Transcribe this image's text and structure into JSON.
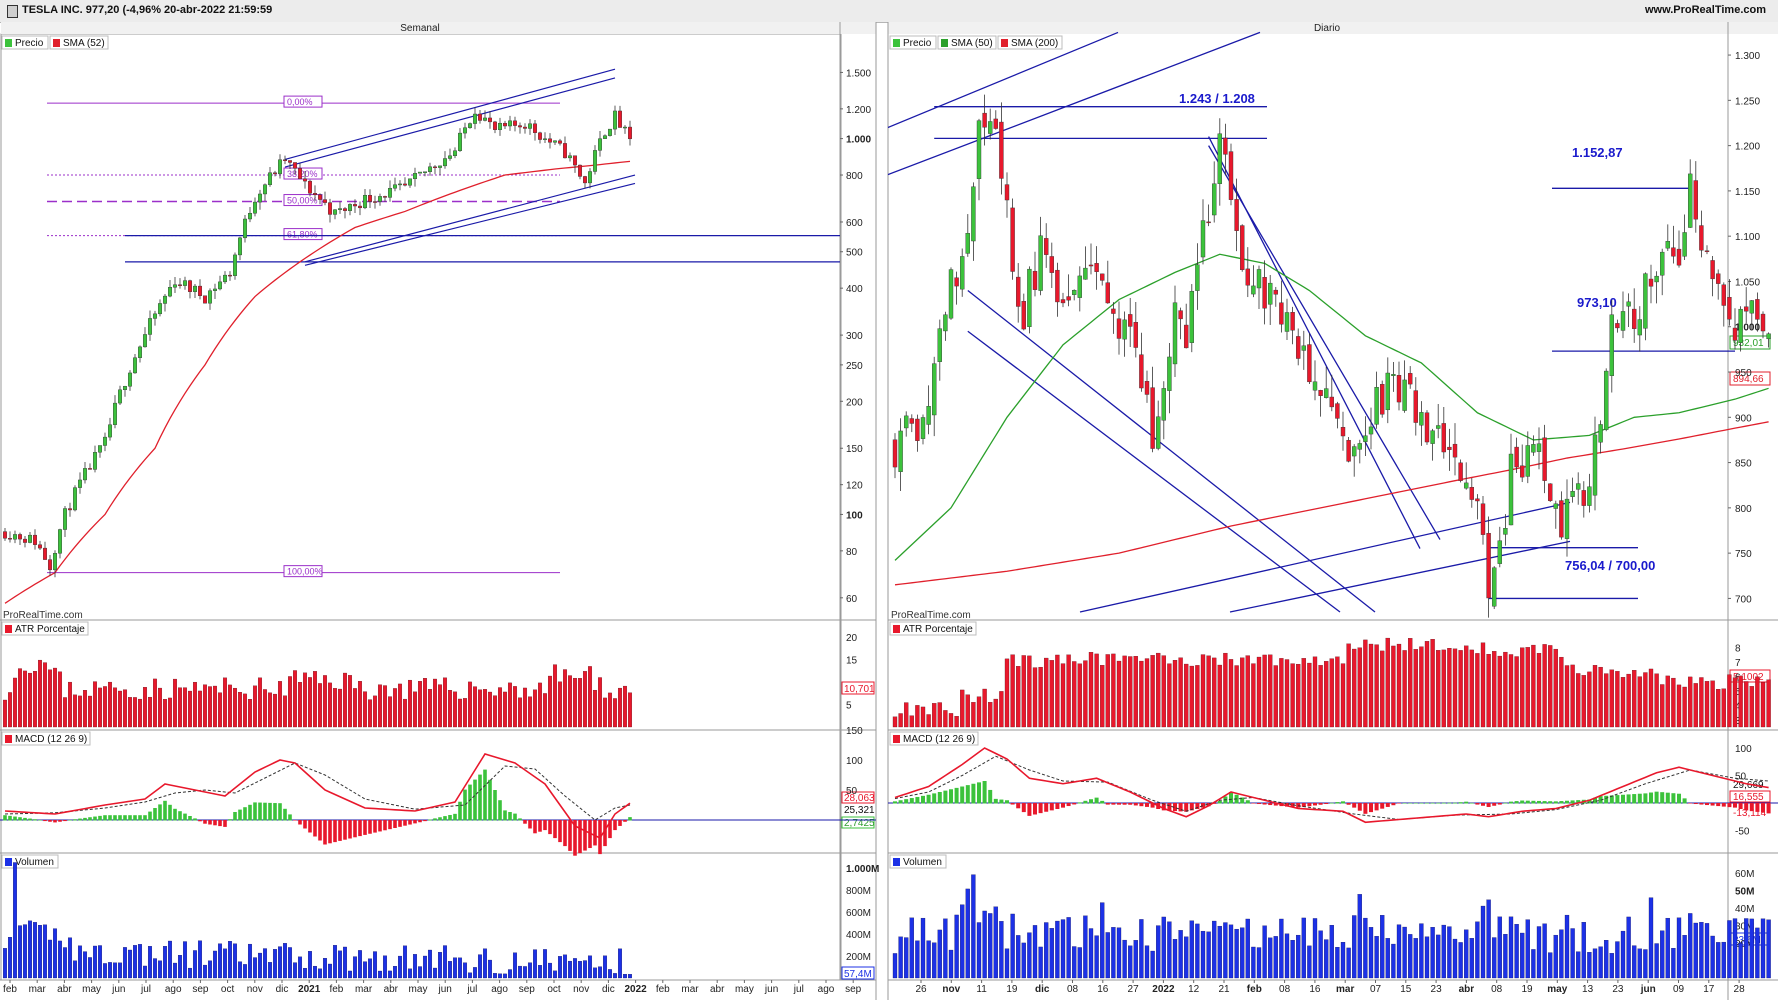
{
  "window": {
    "title": "TESLA INC. 977,20 (-4,96% 20-abr-2022 21:59:59",
    "site": "www.ProRealTime.com"
  },
  "colors": {
    "up": "#3cc23c",
    "down": "#e8182c",
    "sma_red": "#e0202c",
    "sma_green": "#2ba02b",
    "trend": "#1a1aa8",
    "fib": "#9b2fc9",
    "vol": "#1c31e6"
  },
  "left": {
    "panel_title": "Semanal",
    "watermark": "ProRealTime.com",
    "price_legend": [
      "Precio",
      "SMA (52)"
    ],
    "price_axis": [
      "1.500",
      "1.200",
      "1.000",
      "800",
      "600",
      "500",
      "400",
      "300",
      "250",
      "200",
      "150",
      "120",
      "100",
      "80",
      "60"
    ],
    "fib_labels": [
      "0,00%",
      "38,20%",
      "50,00%",
      "61,80%",
      "100,00%"
    ],
    "atr_label": "ATR Porcentaje",
    "atr_axis": [
      "20",
      "15",
      "5"
    ],
    "atr_value": "10,701",
    "macd_label": "MACD (12 26 9)",
    "macd_axis": [
      "150",
      "100",
      "50"
    ],
    "macd_values": [
      "28,063",
      "25,321",
      "2,7425"
    ],
    "vol_label": "Volumen",
    "vol_axis": [
      "1.000M",
      "800M",
      "600M",
      "400M",
      "200M"
    ],
    "vol_value": "57,4M",
    "x_labels": [
      "feb",
      "mar",
      "abr",
      "may",
      "jun",
      "jul",
      "ago",
      "sep",
      "oct",
      "nov",
      "dic",
      "2021",
      "feb",
      "mar",
      "abr",
      "may",
      "jun",
      "jul",
      "ago",
      "sep",
      "oct",
      "nov",
      "dic",
      "2022",
      "feb",
      "mar",
      "abr",
      "may",
      "jun",
      "jul",
      "ago",
      "sep"
    ]
  },
  "right": {
    "panel_title": "Diario",
    "watermark": "ProRealTime.com",
    "price_legend": [
      "Precio",
      "SMA (50)",
      "SMA (200)"
    ],
    "price_axis": [
      "1.300",
      "1.250",
      "1.200",
      "1.150",
      "1.100",
      "1.050",
      "1.000",
      "950",
      "900",
      "850",
      "800",
      "750",
      "700"
    ],
    "badge_sma50": "932,01",
    "badge_sma200": "894,66",
    "annotations": [
      "1.243 / 1.208",
      "1.152,87",
      "973,10",
      "756,04 / 700,00"
    ],
    "atr_label": "ATR Porcentaje",
    "atr_axis": [
      "8",
      "7",
      "6",
      "5",
      "4",
      "3"
    ],
    "atr_value": "5,1002",
    "macd_label": "MACD (12 26 9)",
    "macd_axis": [
      "100",
      "50",
      "-50"
    ],
    "macd_values": [
      "29,669",
      "16,555",
      "-13,114"
    ],
    "vol_label": "Volumen",
    "vol_axis": [
      "60M",
      "50M",
      "40M",
      "30M",
      "20M"
    ],
    "vol_value": "23,6M",
    "x_labels": [
      "26",
      "nov",
      "11",
      "19",
      "dic",
      "08",
      "16",
      "27",
      "2022",
      "12",
      "21",
      "feb",
      "08",
      "16",
      "mar",
      "07",
      "15",
      "23",
      "abr",
      "08",
      "19",
      "may",
      "13",
      "23",
      "jun",
      "09",
      "17",
      "28"
    ]
  },
  "chart_data": [
    {
      "type": "candlestick",
      "title": "Semanal",
      "y_scale": "log",
      "ylim": [
        55,
        1700
      ],
      "series": [
        {
          "name": "Precio",
          "close_path": [
            [
              0,
              90
            ],
            [
              6,
              85
            ],
            [
              9,
              73
            ],
            [
              12,
              100
            ],
            [
              20,
              155
            ],
            [
              28,
              300
            ],
            [
              34,
              420
            ],
            [
              40,
              380
            ],
            [
              45,
              440
            ],
            [
              50,
              700
            ],
            [
              56,
              880
            ],
            [
              60,
              750
            ],
            [
              66,
              630
            ],
            [
              72,
              690
            ],
            [
              80,
              740
            ],
            [
              90,
              930
            ],
            [
              94,
              1200
            ],
            [
              98,
              1050
            ],
            [
              104,
              1100
            ],
            [
              108,
              1000
            ],
            [
              112,
              920
            ],
            [
              116,
              760
            ],
            [
              120,
              1050
            ],
            [
              122,
              1145
            ],
            [
              125,
              977
            ]
          ]
        },
        {
          "name": "SMA (52)",
          "values_path": [
            [
              0,
              58
            ],
            [
              10,
              70
            ],
            [
              20,
              100
            ],
            [
              30,
              150
            ],
            [
              40,
              250
            ],
            [
              50,
              380
            ],
            [
              60,
              480
            ],
            [
              70,
              580
            ],
            [
              80,
              640
            ],
            [
              90,
              720
            ],
            [
              100,
              800
            ],
            [
              110,
              830
            ],
            [
              118,
              850
            ],
            [
              125,
              870
            ]
          ]
        }
      ],
      "horizontal_levels": [
        1243,
        800,
        680,
        552,
        470
      ],
      "fibonacci": [
        {
          "label": "0,00%",
          "value": 1243
        },
        {
          "label": "38,20%",
          "value": 800
        },
        {
          "label": "50,00%",
          "value": 680
        },
        {
          "label": "61,80%",
          "value": 552
        },
        {
          "label": "100,00%",
          "value": 70
        }
      ],
      "atr_percent": {
        "last": 10.701
      },
      "macd": {
        "last": [
          28.063,
          25.321,
          2.7425
        ]
      },
      "volume": {
        "last": "57,4M"
      }
    },
    {
      "type": "candlestick",
      "title": "Diario",
      "ylim": [
        685,
        1310
      ],
      "series": [
        {
          "name": "Precio",
          "close_path": [
            [
              0,
              870
            ],
            [
              5,
              900
            ],
            [
              8,
              1000
            ],
            [
              12,
              1080
            ],
            [
              15,
              1215
            ],
            [
              18,
              1200
            ],
            [
              20,
              1150
            ],
            [
              22,
              1000
            ],
            [
              26,
              1080
            ],
            [
              30,
              1010
            ],
            [
              35,
              1080
            ],
            [
              38,
              1040
            ],
            [
              42,
              980
            ],
            [
              46,
              880
            ],
            [
              50,
              1010
            ],
            [
              52,
              1000
            ],
            [
              54,
              1060
            ],
            [
              58,
              1200
            ],
            [
              60,
              1140
            ],
            [
              62,
              1080
            ],
            [
              66,
              1040
            ],
            [
              70,
              1000
            ],
            [
              74,
              950
            ],
            [
              78,
              900
            ],
            [
              80,
              860
            ],
            [
              84,
              900
            ],
            [
              88,
              925
            ],
            [
              92,
              915
            ],
            [
              96,
              880
            ],
            [
              100,
              860
            ],
            [
              104,
              790
            ],
            [
              106,
              710
            ],
            [
              108,
              760
            ],
            [
              110,
              840
            ],
            [
              114,
              870
            ],
            [
              118,
              800
            ],
            [
              120,
              785
            ],
            [
              124,
              830
            ],
            [
              126,
              900
            ],
            [
              128,
              990
            ],
            [
              132,
              1010
            ],
            [
              136,
              1075
            ],
            [
              140,
              1090
            ],
            [
              142,
              1150
            ],
            [
              144,
              1080
            ],
            [
              148,
              1030
            ],
            [
              150,
              990
            ],
            [
              154,
              1010
            ],
            [
              156,
              977
            ]
          ]
        },
        {
          "name": "SMA (50)",
          "values_path": [
            [
              0,
              742
            ],
            [
              10,
              800
            ],
            [
              20,
              900
            ],
            [
              30,
              980
            ],
            [
              40,
              1030
            ],
            [
              50,
              1060
            ],
            [
              58,
              1080
            ],
            [
              66,
              1070
            ],
            [
              74,
              1040
            ],
            [
              84,
              990
            ],
            [
              94,
              960
            ],
            [
              104,
              905
            ],
            [
              114,
              875
            ],
            [
              124,
              880
            ],
            [
              132,
              900
            ],
            [
              140,
              905
            ],
            [
              150,
              920
            ],
            [
              156,
              932
            ]
          ]
        },
        {
          "name": "SMA (200)",
          "values_path": [
            [
              0,
              715
            ],
            [
              20,
              730
            ],
            [
              40,
              750
            ],
            [
              60,
              780
            ],
            [
              80,
              805
            ],
            [
              100,
              830
            ],
            [
              110,
              842
            ],
            [
              120,
              855
            ],
            [
              130,
              865
            ],
            [
              140,
              876
            ],
            [
              150,
              888
            ],
            [
              156,
              895
            ]
          ]
        }
      ],
      "horizontal_levels": [
        1243,
        1208,
        1152.87,
        973.1,
        756.04,
        700.0
      ],
      "atr_percent": {
        "last": 5.1002
      },
      "macd": {
        "last": [
          29.669,
          16.555,
          -13.114
        ]
      },
      "volume": {
        "last": "23,6M"
      }
    }
  ]
}
